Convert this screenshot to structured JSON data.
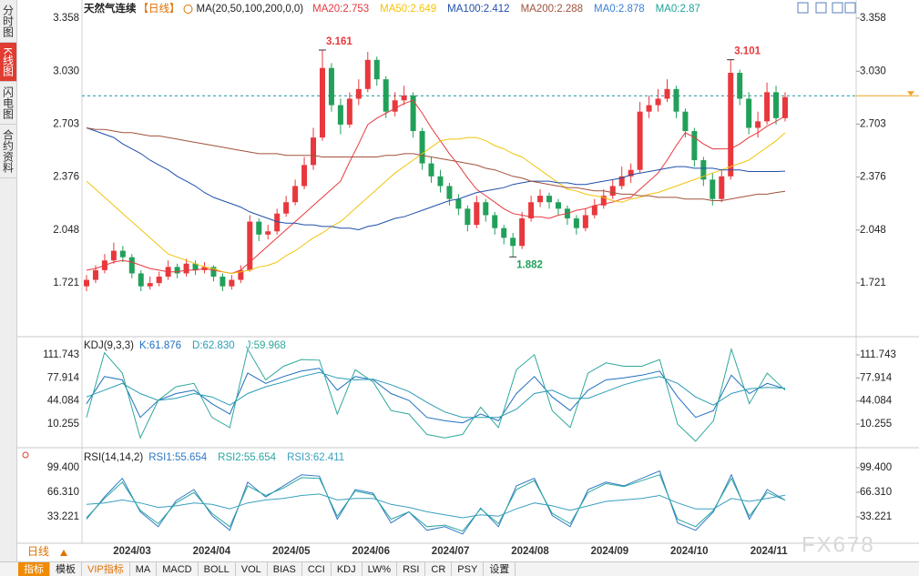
{
  "chart_data": [
    {
      "type": "candlestick",
      "title": "天然气连续",
      "period": "【日线】",
      "ma_params": "MA(20,50,100,200,0,0)",
      "up_color": "#e8383d",
      "down_color": "#22a05a",
      "ylim": [
        1.4,
        3.459
      ],
      "yticks": [
        {
          "value": 3.358,
          "label": "3.358"
        },
        {
          "value": 3.03,
          "label": "3.030"
        },
        {
          "value": 2.703,
          "label": "2.703"
        },
        {
          "value": 2.376,
          "label": "2.376"
        },
        {
          "value": 2.048,
          "label": "2.048"
        },
        {
          "value": 1.721,
          "label": "1.721"
        }
      ],
      "x_labels": [
        "2024/03",
        "2024/04",
        "2024/05",
        "2024/06",
        "2024/07",
        "2024/08",
        "2024/09",
        "2024/10",
        "2024/11"
      ],
      "ohlc": [
        [
          1.7,
          1.77,
          1.67,
          1.74
        ],
        [
          1.74,
          1.83,
          1.72,
          1.8
        ],
        [
          1.8,
          1.9,
          1.78,
          1.86
        ],
        [
          1.86,
          1.97,
          1.84,
          1.92
        ],
        [
          1.92,
          1.95,
          1.85,
          1.88
        ],
        [
          1.88,
          1.9,
          1.75,
          1.78
        ],
        [
          1.78,
          1.8,
          1.67,
          1.7
        ],
        [
          1.7,
          1.76,
          1.68,
          1.72
        ],
        [
          1.72,
          1.79,
          1.7,
          1.76
        ],
        [
          1.76,
          1.86,
          1.74,
          1.82
        ],
        [
          1.82,
          1.84,
          1.75,
          1.78
        ],
        [
          1.78,
          1.87,
          1.76,
          1.84
        ],
        [
          1.84,
          1.86,
          1.77,
          1.8
        ],
        [
          1.8,
          1.85,
          1.78,
          1.82
        ],
        [
          1.82,
          1.83,
          1.73,
          1.76
        ],
        [
          1.76,
          1.78,
          1.67,
          1.7
        ],
        [
          1.7,
          1.77,
          1.68,
          1.74
        ],
        [
          1.74,
          1.83,
          1.72,
          1.8
        ],
        [
          1.8,
          2.14,
          1.79,
          2.1
        ],
        [
          2.1,
          2.12,
          1.98,
          2.02
        ],
        [
          2.02,
          2.08,
          1.99,
          2.04
        ],
        [
          2.04,
          2.18,
          2.02,
          2.15
        ],
        [
          2.15,
          2.26,
          2.13,
          2.22
        ],
        [
          2.22,
          2.36,
          2.2,
          2.32
        ],
        [
          2.32,
          2.5,
          2.3,
          2.45
        ],
        [
          2.45,
          2.68,
          2.42,
          2.62
        ],
        [
          2.62,
          3.161,
          2.6,
          3.05
        ],
        [
          3.05,
          3.08,
          2.78,
          2.82
        ],
        [
          2.82,
          2.86,
          2.64,
          2.7
        ],
        [
          2.7,
          2.9,
          2.68,
          2.86
        ],
        [
          2.86,
          2.98,
          2.82,
          2.92
        ],
        [
          2.92,
          3.15,
          2.9,
          3.1
        ],
        [
          3.1,
          3.12,
          2.94,
          2.98
        ],
        [
          2.98,
          3.0,
          2.74,
          2.78
        ],
        [
          2.78,
          2.9,
          2.75,
          2.85
        ],
        [
          2.85,
          2.94,
          2.82,
          2.88
        ],
        [
          2.88,
          2.9,
          2.62,
          2.66
        ],
        [
          2.66,
          2.68,
          2.42,
          2.46
        ],
        [
          2.46,
          2.5,
          2.34,
          2.38
        ],
        [
          2.38,
          2.42,
          2.28,
          2.32
        ],
        [
          2.32,
          2.34,
          2.2,
          2.24
        ],
        [
          2.24,
          2.27,
          2.14,
          2.18
        ],
        [
          2.18,
          2.2,
          2.04,
          2.08
        ],
        [
          2.08,
          2.26,
          2.06,
          2.22
        ],
        [
          2.22,
          2.24,
          2.1,
          2.14
        ],
        [
          2.14,
          2.16,
          2.02,
          2.06
        ],
        [
          2.06,
          2.08,
          1.96,
          2.0
        ],
        [
          2.0,
          2.03,
          1.882,
          1.95
        ],
        [
          1.95,
          2.16,
          1.93,
          2.12
        ],
        [
          2.12,
          2.26,
          2.1,
          2.22
        ],
        [
          2.22,
          2.3,
          2.19,
          2.26
        ],
        [
          2.26,
          2.28,
          2.18,
          2.22
        ],
        [
          2.22,
          2.24,
          2.14,
          2.18
        ],
        [
          2.18,
          2.2,
          2.08,
          2.12
        ],
        [
          2.12,
          2.14,
          2.02,
          2.06
        ],
        [
          2.06,
          2.18,
          2.04,
          2.14
        ],
        [
          2.14,
          2.24,
          2.12,
          2.2
        ],
        [
          2.2,
          2.3,
          2.18,
          2.26
        ],
        [
          2.26,
          2.36,
          2.24,
          2.32
        ],
        [
          2.32,
          2.44,
          2.3,
          2.38
        ],
        [
          2.38,
          2.46,
          2.34,
          2.42
        ],
        [
          2.42,
          2.84,
          2.4,
          2.78
        ],
        [
          2.78,
          2.88,
          2.74,
          2.82
        ],
        [
          2.82,
          2.92,
          2.78,
          2.86
        ],
        [
          2.86,
          2.98,
          2.84,
          2.92
        ],
        [
          2.92,
          2.94,
          2.74,
          2.78
        ],
        [
          2.78,
          2.8,
          2.62,
          2.66
        ],
        [
          2.66,
          2.68,
          2.44,
          2.48
        ],
        [
          2.48,
          2.5,
          2.32,
          2.36
        ],
        [
          2.36,
          2.4,
          2.2,
          2.24
        ],
        [
          2.24,
          2.42,
          2.22,
          2.38
        ],
        [
          2.38,
          3.101,
          2.36,
          3.02
        ],
        [
          3.02,
          3.04,
          2.82,
          2.86
        ],
        [
          2.86,
          2.9,
          2.64,
          2.68
        ],
        [
          2.68,
          2.78,
          2.62,
          2.72
        ],
        [
          2.72,
          2.96,
          2.7,
          2.9
        ],
        [
          2.9,
          2.94,
          2.7,
          2.74
        ],
        [
          2.74,
          2.9,
          2.72,
          2.87
        ]
      ],
      "series": [
        {
          "label": "MA20:2.753",
          "color": "#e8383d",
          "values": [
            1.8,
            1.81,
            1.83,
            1.85,
            1.86,
            1.85,
            1.83,
            1.81,
            1.8,
            1.79,
            1.79,
            1.8,
            1.8,
            1.81,
            1.8,
            1.79,
            1.78,
            1.8,
            1.85,
            1.9,
            1.95,
            2.0,
            2.05,
            2.1,
            2.15,
            2.2,
            2.25,
            2.3,
            2.35,
            2.47,
            2.58,
            2.7,
            2.74,
            2.77,
            2.8,
            2.83,
            2.85,
            2.77,
            2.68,
            2.6,
            2.52,
            2.45,
            2.37,
            2.3,
            2.26,
            2.22,
            2.18,
            2.15,
            2.14,
            2.13,
            2.13,
            2.12,
            2.14,
            2.15,
            2.17,
            2.18,
            2.2,
            2.21,
            2.22,
            2.24,
            2.25,
            2.3,
            2.35,
            2.4,
            2.48,
            2.57,
            2.65,
            2.62,
            2.58,
            2.55,
            2.55,
            2.55,
            2.58,
            2.62,
            2.65,
            2.69,
            2.72,
            2.753
          ]
        },
        {
          "label": "MA50:2.649",
          "color": "#f2c40c",
          "values": [
            2.35,
            2.3,
            2.25,
            2.2,
            2.15,
            2.1,
            2.05,
            2.0,
            1.95,
            1.9,
            1.88,
            1.86,
            1.84,
            1.82,
            1.81,
            1.79,
            1.78,
            1.79,
            1.8,
            1.82,
            1.83,
            1.85,
            1.89,
            1.92,
            1.96,
            2.0,
            2.03,
            2.07,
            2.1,
            2.15,
            2.2,
            2.25,
            2.3,
            2.35,
            2.4,
            2.44,
            2.48,
            2.52,
            2.56,
            2.6,
            2.61,
            2.61,
            2.62,
            2.62,
            2.6,
            2.57,
            2.55,
            2.52,
            2.5,
            2.46,
            2.42,
            2.38,
            2.34,
            2.3,
            2.29,
            2.27,
            2.26,
            2.25,
            2.23,
            2.22,
            2.24,
            2.25,
            2.27,
            2.28,
            2.3,
            2.32,
            2.34,
            2.36,
            2.38,
            2.4,
            2.42,
            2.44,
            2.46,
            2.48,
            2.52,
            2.56,
            2.6,
            2.649
          ]
        },
        {
          "label": "MA100:2.412",
          "color": "#1f50a8",
          "values": [
            2.68,
            2.66,
            2.64,
            2.62,
            2.58,
            2.55,
            2.52,
            2.48,
            2.45,
            2.42,
            2.38,
            2.35,
            2.32,
            2.28,
            2.25,
            2.23,
            2.21,
            2.19,
            2.16,
            2.14,
            2.12,
            2.1,
            2.09,
            2.09,
            2.08,
            2.08,
            2.07,
            2.07,
            2.06,
            2.06,
            2.05,
            2.07,
            2.08,
            2.1,
            2.12,
            2.13,
            2.15,
            2.17,
            2.19,
            2.21,
            2.23,
            2.24,
            2.26,
            2.28,
            2.29,
            2.3,
            2.31,
            2.33,
            2.34,
            2.35,
            2.35,
            2.35,
            2.34,
            2.34,
            2.33,
            2.33,
            2.34,
            2.35,
            2.36,
            2.37,
            2.39,
            2.4,
            2.41,
            2.42,
            2.43,
            2.44,
            2.44,
            2.43,
            2.43,
            2.43,
            2.42,
            2.42,
            2.42,
            2.41,
            2.41,
            2.41,
            2.41,
            2.412
          ]
        },
        {
          "label": "MA200:2.288",
          "color": "#a0523c",
          "values": [
            2.68,
            2.67,
            2.67,
            2.66,
            2.65,
            2.65,
            2.64,
            2.63,
            2.63,
            2.62,
            2.61,
            2.6,
            2.59,
            2.58,
            2.57,
            2.56,
            2.55,
            2.54,
            2.53,
            2.52,
            2.52,
            2.52,
            2.51,
            2.51,
            2.51,
            2.51,
            2.5,
            2.5,
            2.5,
            2.5,
            2.5,
            2.5,
            2.5,
            2.51,
            2.51,
            2.52,
            2.52,
            2.51,
            2.5,
            2.49,
            2.48,
            2.47,
            2.46,
            2.45,
            2.43,
            2.42,
            2.4,
            2.38,
            2.37,
            2.35,
            2.34,
            2.33,
            2.32,
            2.31,
            2.31,
            2.3,
            2.29,
            2.29,
            2.28,
            2.27,
            2.27,
            2.26,
            2.26,
            2.25,
            2.25,
            2.25,
            2.24,
            2.24,
            2.24,
            2.23,
            2.23,
            2.24,
            2.25,
            2.26,
            2.27,
            2.27,
            2.28,
            2.288
          ]
        }
      ],
      "extra_legend": [
        {
          "text": "MA0:2.878",
          "color": "#3a7fd5"
        },
        {
          "text": "MA0:2.87",
          "color": "#1fa39a"
        }
      ],
      "price_line": 2.878,
      "price_line_color": "#1f8fa0",
      "annotations": [
        {
          "text": "3.161",
          "color": "#e8383d"
        },
        {
          "text": "3.101",
          "color": "#e8383d"
        },
        {
          "text": "1.882",
          "color": "#22a05a"
        }
      ]
    },
    {
      "type": "line",
      "title": "KDJ(9,3,3)",
      "ylim": [
        -21.8,
        135.8
      ],
      "yticks": [
        {
          "value": 111.743,
          "label": "111.743"
        },
        {
          "value": 77.914,
          "label": "77.914"
        },
        {
          "value": 44.084,
          "label": "44.084"
        },
        {
          "value": 10.255,
          "label": "10.255"
        }
      ],
      "series": [
        {
          "label": "K:61.876",
          "color": "#1f6fc0",
          "values": [
            40,
            80,
            75,
            20,
            45,
            55,
            60,
            40,
            25,
            85,
            70,
            80,
            88,
            92,
            60,
            80,
            75,
            55,
            45,
            20,
            15,
            12,
            25,
            15,
            55,
            80,
            50,
            30,
            60,
            75,
            78,
            82,
            88,
            50,
            20,
            30,
            82,
            55,
            70,
            61.876
          ]
        },
        {
          "label": "D:62.830",
          "color": "#2a9cb5",
          "values": [
            50,
            60,
            70,
            55,
            45,
            48,
            55,
            50,
            38,
            55,
            65,
            72,
            80,
            86,
            78,
            75,
            76,
            68,
            58,
            42,
            28,
            20,
            20,
            20,
            32,
            55,
            60,
            48,
            48,
            58,
            68,
            75,
            80,
            70,
            50,
            38,
            55,
            62,
            64,
            62.83
          ]
        },
        {
          "label": "J:59.968",
          "color": "#2fa89a",
          "values": [
            20,
            115,
            85,
            -10,
            45,
            65,
            70,
            20,
            5,
            120,
            75,
            95,
            105,
            104,
            25,
            90,
            72,
            30,
            25,
            -5,
            -10,
            -5,
            35,
            5,
            90,
            112,
            30,
            5,
            85,
            100,
            95,
            95,
            105,
            10,
            -15,
            15,
            120,
            40,
            85,
            59.968
          ]
        }
      ]
    },
    {
      "type": "line",
      "title": "RSI(14,14,2)",
      "ylim": [
        0.1,
        123.9
      ],
      "yticks": [
        {
          "value": 99.4,
          "label": "99.400"
        },
        {
          "value": 66.31,
          "label": "66.310"
        },
        {
          "value": 33.221,
          "label": "33.221"
        }
      ],
      "series": [
        {
          "label": "RSI1:55.654",
          "color": "#2f78c4",
          "values": [
            30,
            60,
            85,
            40,
            20,
            55,
            70,
            35,
            15,
            80,
            60,
            75,
            90,
            88,
            30,
            70,
            65,
            25,
            40,
            15,
            20,
            10,
            45,
            20,
            75,
            85,
            35,
            20,
            70,
            80,
            75,
            85,
            95,
            25,
            15,
            40,
            90,
            30,
            70,
            55.654
          ]
        },
        {
          "label": "RSI2:55.654",
          "color": "#2aa7a0",
          "values": [
            32,
            58,
            80,
            42,
            24,
            52,
            66,
            38,
            20,
            75,
            62,
            72,
            86,
            85,
            34,
            68,
            63,
            30,
            40,
            20,
            22,
            14,
            44,
            24,
            70,
            82,
            38,
            24,
            66,
            78,
            74,
            82,
            90,
            30,
            20,
            42,
            85,
            34,
            66,
            55.654
          ]
        },
        {
          "label": "RSI3:62.411",
          "color": "#3a9fbf",
          "values": [
            50,
            52,
            56,
            52,
            46,
            48,
            52,
            50,
            44,
            52,
            56,
            58,
            62,
            64,
            56,
            58,
            58,
            50,
            46,
            40,
            36,
            32,
            36,
            34,
            44,
            52,
            48,
            42,
            48,
            54,
            56,
            58,
            62,
            52,
            44,
            44,
            58,
            54,
            58,
            62.411
          ]
        }
      ]
    }
  ],
  "ui": {
    "sidebar": [
      "分时图",
      "K线图",
      "闪电图",
      "合约资料"
    ],
    "toolbar": [
      "指标",
      "模板",
      "VIP指标",
      "MA",
      "MACD",
      "BOLL",
      "VOL",
      "BIAS",
      "CCI",
      "KDJ",
      "LW%",
      "RSI",
      "CR",
      "PSY",
      "设置"
    ],
    "period_tab": "日线",
    "watermark": "FX678"
  }
}
